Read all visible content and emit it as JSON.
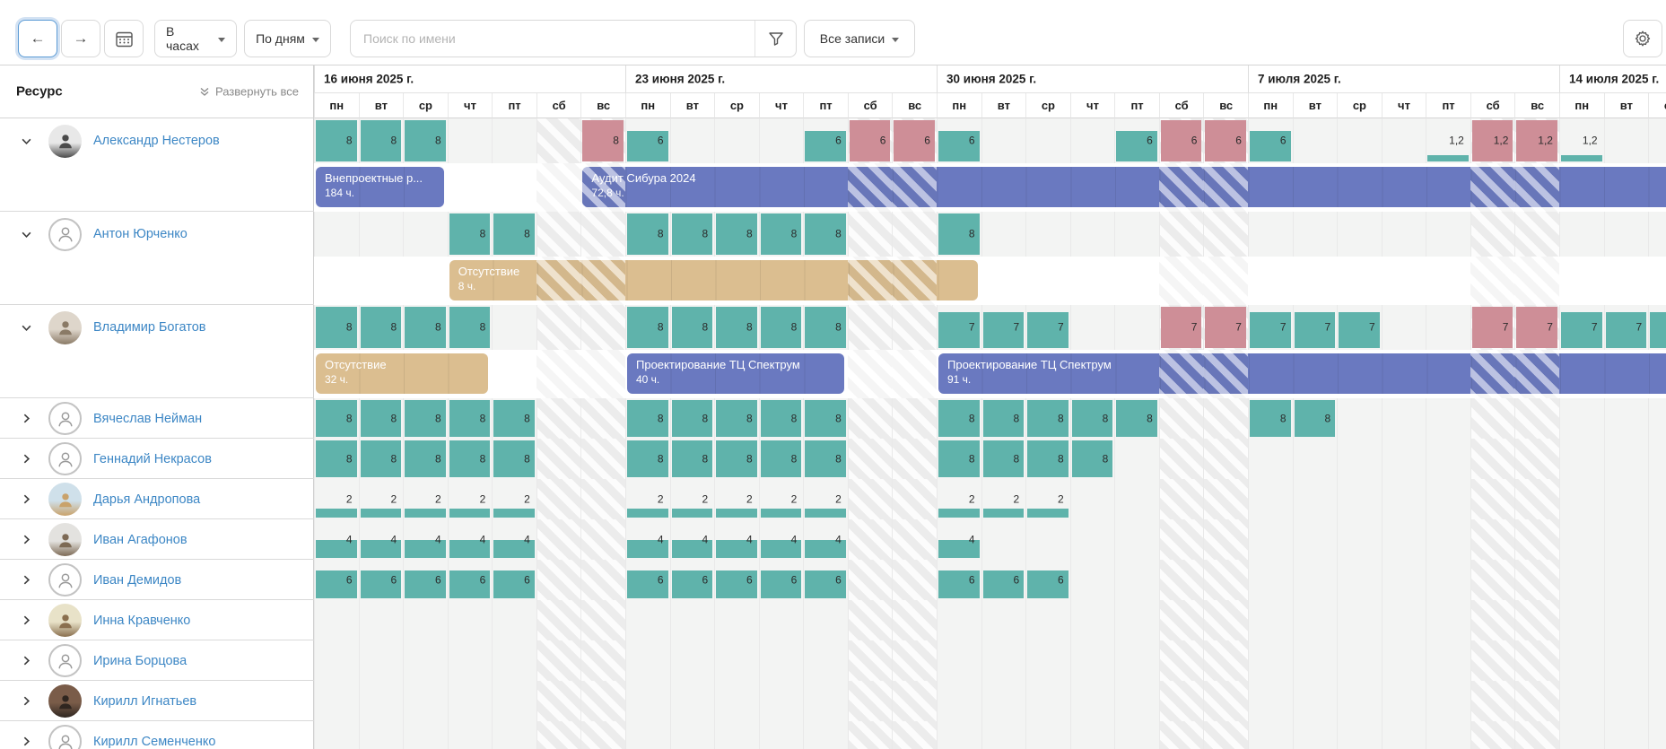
{
  "toolbar": {
    "back_icon": "←",
    "forward_icon": "→",
    "unit_select": "В часах",
    "scale_select": "По дням",
    "search_placeholder": "Поиск по имени",
    "records_filter": "Все записи"
  },
  "panel": {
    "title": "Ресурс",
    "expand_all": "Развернуть все"
  },
  "calendar": {
    "weeks": [
      "16 июня 2025 г.",
      "23 июня 2025 г.",
      "30 июня 2025 г.",
      "7 июля 2025 г.",
      "14 июля 2025 г."
    ],
    "day_names": [
      "пн",
      "вт",
      "ср",
      "чт",
      "пт",
      "сб",
      "вс"
    ]
  },
  "colors": {
    "work_fill": "#5fb3ab",
    "overload_fill": "#ce8e97",
    "task_bar": "#6a79c0",
    "absence_bar": "#dbbe90",
    "name_link": "#3d87c5"
  },
  "resources": [
    {
      "name": "Александр Нестеров",
      "expanded": true,
      "tall": true,
      "avatar": {
        "type": "photo",
        "bg": "#e8e8e8",
        "fg": "#4a4a4a"
      },
      "cells": [
        {
          "d": 0,
          "v": "8",
          "f": 1
        },
        {
          "d": 1,
          "v": "8",
          "f": 1
        },
        {
          "d": 2,
          "v": "8",
          "f": 1
        },
        {
          "d": 6,
          "v": "8",
          "f": 1,
          "o": true
        },
        {
          "d": 7,
          "v": "6",
          "f": 0.75
        },
        {
          "d": 11,
          "v": "6",
          "f": 0.75
        },
        {
          "d": 12,
          "v": "6",
          "f": 1,
          "o": true
        },
        {
          "d": 13,
          "v": "6",
          "f": 1,
          "o": true
        },
        {
          "d": 14,
          "v": "6",
          "f": 0.75
        },
        {
          "d": 18,
          "v": "6",
          "f": 0.75
        },
        {
          "d": 19,
          "v": "6",
          "f": 1,
          "o": true
        },
        {
          "d": 20,
          "v": "6",
          "f": 1,
          "o": true
        },
        {
          "d": 21,
          "v": "6",
          "f": 0.75
        },
        {
          "d": 25,
          "v": "1,2",
          "f": 0.15
        },
        {
          "d": 26,
          "v": "1,2",
          "f": 1,
          "o": true
        },
        {
          "d": 27,
          "v": "1,2",
          "f": 1,
          "o": true
        },
        {
          "d": 28,
          "v": "1,2",
          "f": 0.15
        }
      ],
      "bars": [
        {
          "title": "Внепроектные р...",
          "hours": "184 ч.",
          "kind": "task",
          "from": 0,
          "to": 2,
          "open_right": false
        },
        {
          "title": "Аудит Сибура 2024",
          "hours": "72,8 ч.",
          "kind": "task",
          "from": 6,
          "to": 30,
          "open_right": true
        }
      ]
    },
    {
      "name": "Антон Юрченко",
      "expanded": true,
      "tall": true,
      "avatar": {
        "type": "icon"
      },
      "cells": [
        {
          "d": 3,
          "v": "8",
          "f": 1
        },
        {
          "d": 4,
          "v": "8",
          "f": 1
        },
        {
          "d": 7,
          "v": "8",
          "f": 1
        },
        {
          "d": 8,
          "v": "8",
          "f": 1
        },
        {
          "d": 9,
          "v": "8",
          "f": 1
        },
        {
          "d": 10,
          "v": "8",
          "f": 1
        },
        {
          "d": 11,
          "v": "8",
          "f": 1
        },
        {
          "d": 14,
          "v": "8",
          "f": 1
        }
      ],
      "bars": [
        {
          "title": "Отсутствие",
          "hours": "8 ч.",
          "kind": "absence",
          "from": 3,
          "to": 14,
          "open_right": false
        }
      ]
    },
    {
      "name": "Владимир Богатов",
      "expanded": true,
      "tall": true,
      "avatar": {
        "type": "photo",
        "bg": "#ded6cb",
        "fg": "#8a7a66"
      },
      "cells": [
        {
          "d": 0,
          "v": "8",
          "f": 1
        },
        {
          "d": 1,
          "v": "8",
          "f": 1
        },
        {
          "d": 2,
          "v": "8",
          "f": 1
        },
        {
          "d": 3,
          "v": "8",
          "f": 1
        },
        {
          "d": 7,
          "v": "8",
          "f": 1
        },
        {
          "d": 8,
          "v": "8",
          "f": 1
        },
        {
          "d": 9,
          "v": "8",
          "f": 1
        },
        {
          "d": 10,
          "v": "8",
          "f": 1
        },
        {
          "d": 11,
          "v": "8",
          "f": 1
        },
        {
          "d": 14,
          "v": "7",
          "f": 0.875
        },
        {
          "d": 15,
          "v": "7",
          "f": 0.875
        },
        {
          "d": 16,
          "v": "7",
          "f": 0.875
        },
        {
          "d": 19,
          "v": "7",
          "f": 1,
          "o": true
        },
        {
          "d": 20,
          "v": "7",
          "f": 1,
          "o": true
        },
        {
          "d": 21,
          "v": "7",
          "f": 0.875
        },
        {
          "d": 22,
          "v": "7",
          "f": 0.875
        },
        {
          "d": 23,
          "v": "7",
          "f": 0.875
        },
        {
          "d": 26,
          "v": "7",
          "f": 1,
          "o": true
        },
        {
          "d": 27,
          "v": "7",
          "f": 1,
          "o": true
        },
        {
          "d": 28,
          "v": "7",
          "f": 0.875
        },
        {
          "d": 29,
          "v": "7",
          "f": 0.875
        },
        {
          "d": 30,
          "v": "7",
          "f": 0.875
        }
      ],
      "bars": [
        {
          "title": "Отсутствие",
          "hours": "32 ч.",
          "kind": "absence",
          "from": 0,
          "to": 3,
          "open_right": false
        },
        {
          "title": "Проектирование ТЦ Спектрум",
          "hours": "40 ч.",
          "kind": "task",
          "from": 7,
          "to": 11,
          "open_right": false
        },
        {
          "title": "Проектирование ТЦ Спектрум",
          "hours": "91 ч.",
          "kind": "task",
          "from": 14,
          "to": 30,
          "open_right": true
        }
      ]
    },
    {
      "name": "Вячеслав Нейман",
      "expanded": false,
      "tall": false,
      "avatar": {
        "type": "icon"
      },
      "cells": [
        {
          "d": 0,
          "v": "8",
          "f": 1
        },
        {
          "d": 1,
          "v": "8",
          "f": 1
        },
        {
          "d": 2,
          "v": "8",
          "f": 1
        },
        {
          "d": 3,
          "v": "8",
          "f": 1
        },
        {
          "d": 4,
          "v": "8",
          "f": 1
        },
        {
          "d": 7,
          "v": "8",
          "f": 1
        },
        {
          "d": 8,
          "v": "8",
          "f": 1
        },
        {
          "d": 9,
          "v": "8",
          "f": 1
        },
        {
          "d": 10,
          "v": "8",
          "f": 1
        },
        {
          "d": 11,
          "v": "8",
          "f": 1
        },
        {
          "d": 14,
          "v": "8",
          "f": 1
        },
        {
          "d": 15,
          "v": "8",
          "f": 1
        },
        {
          "d": 16,
          "v": "8",
          "f": 1
        },
        {
          "d": 17,
          "v": "8",
          "f": 1
        },
        {
          "d": 18,
          "v": "8",
          "f": 1
        },
        {
          "d": 21,
          "v": "8",
          "f": 1
        },
        {
          "d": 22,
          "v": "8",
          "f": 1
        }
      ],
      "bars": []
    },
    {
      "name": "Геннадий Некрасов",
      "expanded": false,
      "tall": false,
      "avatar": {
        "type": "icon"
      },
      "cells": [
        {
          "d": 0,
          "v": "8",
          "f": 1
        },
        {
          "d": 1,
          "v": "8",
          "f": 1
        },
        {
          "d": 2,
          "v": "8",
          "f": 1
        },
        {
          "d": 3,
          "v": "8",
          "f": 1
        },
        {
          "d": 4,
          "v": "8",
          "f": 1
        },
        {
          "d": 7,
          "v": "8",
          "f": 1
        },
        {
          "d": 8,
          "v": "8",
          "f": 1
        },
        {
          "d": 9,
          "v": "8",
          "f": 1
        },
        {
          "d": 10,
          "v": "8",
          "f": 1
        },
        {
          "d": 11,
          "v": "8",
          "f": 1
        },
        {
          "d": 14,
          "v": "8",
          "f": 1
        },
        {
          "d": 15,
          "v": "8",
          "f": 1
        },
        {
          "d": 16,
          "v": "8",
          "f": 1
        },
        {
          "d": 17,
          "v": "8",
          "f": 1
        }
      ],
      "bars": []
    },
    {
      "name": "Дарья Андропова",
      "expanded": false,
      "tall": false,
      "avatar": {
        "type": "photo",
        "bg": "#cfe0ea",
        "fg": "#c9a26b"
      },
      "cells": [
        {
          "d": 0,
          "v": "2",
          "f": 0.25
        },
        {
          "d": 1,
          "v": "2",
          "f": 0.25
        },
        {
          "d": 2,
          "v": "2",
          "f": 0.25
        },
        {
          "d": 3,
          "v": "2",
          "f": 0.25
        },
        {
          "d": 4,
          "v": "2",
          "f": 0.25
        },
        {
          "d": 7,
          "v": "2",
          "f": 0.25
        },
        {
          "d": 8,
          "v": "2",
          "f": 0.25
        },
        {
          "d": 9,
          "v": "2",
          "f": 0.25
        },
        {
          "d": 10,
          "v": "2",
          "f": 0.25
        },
        {
          "d": 11,
          "v": "2",
          "f": 0.25
        },
        {
          "d": 14,
          "v": "2",
          "f": 0.25
        },
        {
          "d": 15,
          "v": "2",
          "f": 0.25
        },
        {
          "d": 16,
          "v": "2",
          "f": 0.25
        }
      ],
      "bars": []
    },
    {
      "name": "Иван Агафонов",
      "expanded": false,
      "tall": false,
      "avatar": {
        "type": "photo",
        "bg": "#e3e2df",
        "fg": "#7d6a55"
      },
      "cells": [
        {
          "d": 0,
          "v": "4",
          "f": 0.5
        },
        {
          "d": 1,
          "v": "4",
          "f": 0.5
        },
        {
          "d": 2,
          "v": "4",
          "f": 0.5
        },
        {
          "d": 3,
          "v": "4",
          "f": 0.5
        },
        {
          "d": 4,
          "v": "4",
          "f": 0.5
        },
        {
          "d": 7,
          "v": "4",
          "f": 0.5
        },
        {
          "d": 8,
          "v": "4",
          "f": 0.5
        },
        {
          "d": 9,
          "v": "4",
          "f": 0.5
        },
        {
          "d": 10,
          "v": "4",
          "f": 0.5
        },
        {
          "d": 11,
          "v": "4",
          "f": 0.5
        },
        {
          "d": 14,
          "v": "4",
          "f": 0.5
        }
      ],
      "bars": []
    },
    {
      "name": "Иван Демидов",
      "expanded": false,
      "tall": false,
      "avatar": {
        "type": "icon"
      },
      "cells": [
        {
          "d": 0,
          "v": "6",
          "f": 0.75
        },
        {
          "d": 1,
          "v": "6",
          "f": 0.75
        },
        {
          "d": 2,
          "v": "6",
          "f": 0.75
        },
        {
          "d": 3,
          "v": "6",
          "f": 0.75
        },
        {
          "d": 4,
          "v": "6",
          "f": 0.75
        },
        {
          "d": 7,
          "v": "6",
          "f": 0.75
        },
        {
          "d": 8,
          "v": "6",
          "f": 0.75
        },
        {
          "d": 9,
          "v": "6",
          "f": 0.75
        },
        {
          "d": 10,
          "v": "6",
          "f": 0.75
        },
        {
          "d": 11,
          "v": "6",
          "f": 0.75
        },
        {
          "d": 14,
          "v": "6",
          "f": 0.75
        },
        {
          "d": 15,
          "v": "6",
          "f": 0.75
        },
        {
          "d": 16,
          "v": "6",
          "f": 0.75
        }
      ],
      "bars": []
    },
    {
      "name": "Инна Кравченко",
      "expanded": false,
      "tall": false,
      "avatar": {
        "type": "photo",
        "bg": "#e8e2c8",
        "fg": "#8a6f4e"
      },
      "cells": [],
      "bars": []
    },
    {
      "name": "Ирина Борцова",
      "expanded": false,
      "tall": false,
      "avatar": {
        "type": "icon"
      },
      "cells": [],
      "bars": []
    },
    {
      "name": "Кирилл Игнатьев",
      "expanded": false,
      "tall": false,
      "avatar": {
        "type": "photo",
        "bg": "#7a5c49",
        "fg": "#2f2620"
      },
      "cells": [],
      "bars": []
    },
    {
      "name": "Кирилл Семенченко",
      "expanded": false,
      "tall": false,
      "avatar": {
        "type": "icon"
      },
      "cells": [],
      "bars": []
    }
  ]
}
